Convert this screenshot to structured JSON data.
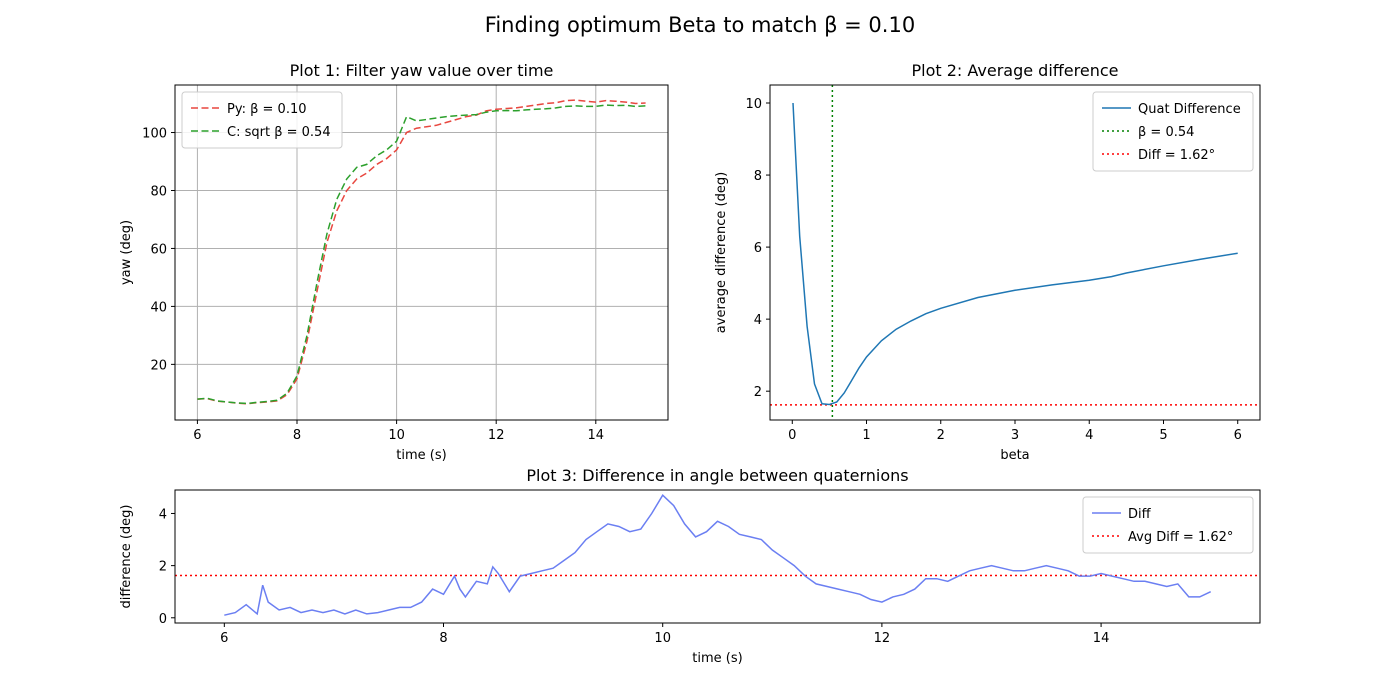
{
  "suptitle": "Finding optimum Beta to match β = 0.10",
  "chart_data": [
    {
      "type": "line",
      "title": "Plot 1: Filter yaw value over time",
      "xlabel": "time (s)",
      "ylabel": "yaw (deg)",
      "xlim": [
        5.55,
        15.45
      ],
      "ylim": [
        0.8,
        116.4
      ],
      "xticks": [
        6,
        8,
        10,
        12,
        14
      ],
      "yticks": [
        20,
        40,
        60,
        80,
        100
      ],
      "grid": true,
      "legend_position": "top-left",
      "series": [
        {
          "name": "Py: β = 0.10",
          "color": "#e8473f",
          "dash": "dashed",
          "x": [
            6.0,
            6.2,
            6.4,
            6.6,
            6.8,
            7.0,
            7.2,
            7.4,
            7.6,
            7.8,
            8.0,
            8.2,
            8.4,
            8.6,
            8.8,
            9.0,
            9.2,
            9.4,
            9.6,
            9.8,
            10.0,
            10.2,
            10.4,
            10.6,
            10.8,
            11.0,
            11.2,
            11.4,
            11.6,
            11.8,
            12.0,
            12.2,
            12.4,
            12.6,
            12.8,
            13.0,
            13.2,
            13.4,
            13.6,
            13.8,
            14.0,
            14.2,
            14.4,
            14.6,
            14.8,
            15.0
          ],
          "y": [
            8.0,
            8.2,
            7.3,
            7.0,
            6.6,
            6.4,
            6.8,
            7.0,
            7.4,
            9.5,
            15.0,
            28.0,
            45.0,
            62.0,
            73.0,
            80.0,
            84.0,
            86.0,
            89.0,
            91.0,
            94.0,
            100.0,
            101.5,
            102.0,
            102.5,
            103.5,
            104.5,
            105.5,
            106.0,
            107.5,
            108.0,
            108.3,
            108.5,
            109.0,
            109.5,
            110.0,
            110.3,
            111.0,
            111.2,
            110.8,
            110.5,
            111.0,
            110.8,
            110.5,
            110.0,
            110.2
          ]
        },
        {
          "name": "C: sqrt β = 0.54",
          "color": "#2ca02c",
          "dash": "dashed",
          "x": [
            6.0,
            6.2,
            6.4,
            6.6,
            6.8,
            7.0,
            7.2,
            7.4,
            7.6,
            7.8,
            8.0,
            8.2,
            8.4,
            8.6,
            8.8,
            9.0,
            9.2,
            9.4,
            9.6,
            9.8,
            10.0,
            10.2,
            10.4,
            10.6,
            10.8,
            11.0,
            11.2,
            11.4,
            11.6,
            11.8,
            12.0,
            12.2,
            12.4,
            12.6,
            12.8,
            13.0,
            13.2,
            13.4,
            13.6,
            13.8,
            14.0,
            14.2,
            14.4,
            14.6,
            14.8,
            15.0
          ],
          "y": [
            8.0,
            8.3,
            7.4,
            7.0,
            6.7,
            6.5,
            6.9,
            7.2,
            7.6,
            10.0,
            16.0,
            30.0,
            48.0,
            65.0,
            77.0,
            84.0,
            88.0,
            89.0,
            92.0,
            94.0,
            97.0,
            105.5,
            104.0,
            104.5,
            105.0,
            105.5,
            105.8,
            106.0,
            106.2,
            107.0,
            107.5,
            107.6,
            107.5,
            107.8,
            108.0,
            108.2,
            108.5,
            109.0,
            109.2,
            109.0,
            109.0,
            109.5,
            109.3,
            109.4,
            109.0,
            109.2
          ]
        }
      ]
    },
    {
      "type": "line",
      "title": "Plot 2: Average difference",
      "xlabel": "beta",
      "ylabel": "average difference (deg)",
      "xlim": [
        -0.3,
        6.3
      ],
      "ylim": [
        1.2,
        10.5
      ],
      "xticks": [
        0,
        1,
        2,
        3,
        4,
        5,
        6
      ],
      "yticks": [
        2,
        4,
        6,
        8,
        10
      ],
      "grid": false,
      "legend_position": "top-right",
      "series": [
        {
          "name": "Quat Difference",
          "color": "#1f77b4",
          "dash": "solid",
          "x": [
            0.01,
            0.1,
            0.2,
            0.3,
            0.4,
            0.5,
            0.6,
            0.7,
            0.8,
            0.9,
            1.0,
            1.2,
            1.4,
            1.6,
            1.8,
            2.0,
            2.5,
            3.0,
            3.5,
            4.0,
            4.3,
            4.5,
            5.0,
            5.5,
            6.0
          ],
          "y": [
            10.0,
            6.3,
            3.8,
            2.2,
            1.65,
            1.63,
            1.7,
            1.95,
            2.3,
            2.65,
            2.95,
            3.4,
            3.72,
            3.95,
            4.15,
            4.3,
            4.6,
            4.8,
            4.95,
            5.08,
            5.18,
            5.28,
            5.48,
            5.66,
            5.83
          ]
        }
      ],
      "reference_lines": [
        {
          "name": "β = 0.54",
          "orientation": "vertical",
          "value": 0.54,
          "color": "#008000",
          "dash": "dotted"
        },
        {
          "name": "Diff = 1.62°",
          "orientation": "horizontal",
          "value": 1.62,
          "color": "#ff0000",
          "dash": "dotted"
        }
      ]
    },
    {
      "type": "line",
      "title": "Plot 3: Difference in angle between quaternions",
      "xlabel": "time (s)",
      "ylabel": "difference (deg)",
      "xlim": [
        5.55,
        15.45
      ],
      "ylim": [
        -0.2,
        4.9
      ],
      "xticks": [
        6,
        8,
        10,
        12,
        14
      ],
      "yticks": [
        0,
        2,
        4
      ],
      "grid": false,
      "legend_position": "top-right",
      "series": [
        {
          "name": "Diff",
          "color": "#6b7ff2",
          "dash": "solid",
          "x": [
            6.0,
            6.1,
            6.2,
            6.3,
            6.35,
            6.4,
            6.5,
            6.6,
            6.7,
            6.8,
            6.9,
            7.0,
            7.1,
            7.2,
            7.3,
            7.4,
            7.5,
            7.6,
            7.7,
            7.8,
            7.9,
            8.0,
            8.1,
            8.15,
            8.2,
            8.3,
            8.4,
            8.45,
            8.5,
            8.6,
            8.7,
            8.8,
            8.9,
            9.0,
            9.1,
            9.2,
            9.3,
            9.4,
            9.5,
            9.6,
            9.7,
            9.8,
            9.9,
            10.0,
            10.1,
            10.2,
            10.3,
            10.4,
            10.5,
            10.6,
            10.7,
            10.8,
            10.9,
            11.0,
            11.1,
            11.2,
            11.3,
            11.4,
            11.5,
            11.6,
            11.7,
            11.8,
            11.9,
            12.0,
            12.1,
            12.2,
            12.3,
            12.4,
            12.5,
            12.6,
            12.7,
            12.8,
            12.9,
            13.0,
            13.1,
            13.2,
            13.3,
            13.4,
            13.5,
            13.6,
            13.7,
            13.8,
            13.9,
            14.0,
            14.1,
            14.2,
            14.3,
            14.4,
            14.5,
            14.6,
            14.7,
            14.8,
            14.9,
            15.0
          ],
          "y": [
            0.1,
            0.2,
            0.5,
            0.15,
            1.25,
            0.6,
            0.3,
            0.4,
            0.2,
            0.3,
            0.2,
            0.3,
            0.15,
            0.3,
            0.15,
            0.2,
            0.3,
            0.4,
            0.4,
            0.6,
            1.1,
            0.9,
            1.6,
            1.1,
            0.8,
            1.4,
            1.3,
            1.95,
            1.7,
            1.0,
            1.6,
            1.7,
            1.8,
            1.9,
            2.2,
            2.5,
            3.0,
            3.3,
            3.6,
            3.5,
            3.3,
            3.4,
            4.0,
            4.7,
            4.3,
            3.6,
            3.1,
            3.3,
            3.7,
            3.5,
            3.2,
            3.1,
            3.0,
            2.6,
            2.3,
            2.0,
            1.6,
            1.3,
            1.2,
            1.1,
            1.0,
            0.9,
            0.7,
            0.6,
            0.8,
            0.9,
            1.1,
            1.5,
            1.5,
            1.4,
            1.6,
            1.8,
            1.9,
            2.0,
            1.9,
            1.8,
            1.8,
            1.9,
            2.0,
            1.9,
            1.8,
            1.6,
            1.6,
            1.7,
            1.6,
            1.5,
            1.4,
            1.4,
            1.3,
            1.2,
            1.3,
            0.8,
            0.8,
            1.0
          ]
        }
      ],
      "reference_lines": [
        {
          "name": "Avg Diff = 1.62°",
          "orientation": "horizontal",
          "value": 1.62,
          "color": "#ff0000",
          "dash": "dotted"
        }
      ]
    }
  ]
}
